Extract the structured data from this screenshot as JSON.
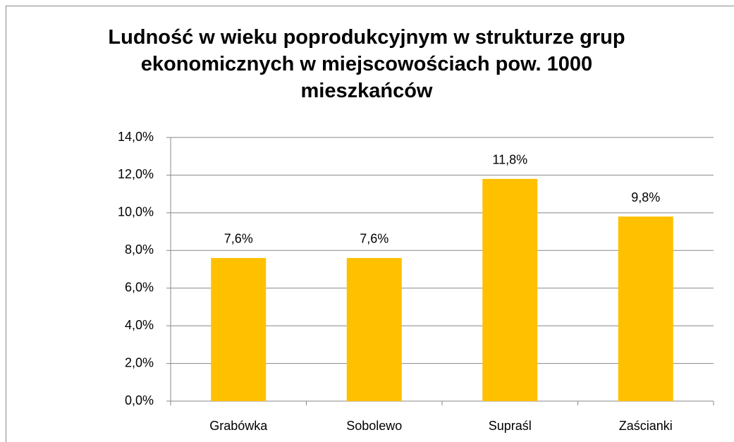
{
  "chart_data": {
    "type": "bar",
    "title": "Ludność  w wieku poprodukcyjnym w strukturze grup ekonomicznych w miejscowościach pow. 1000 mieszkańców",
    "categories": [
      "Grabówka",
      "Sobolewo",
      "Supraśl",
      "Zaścianki"
    ],
    "values": [
      7.6,
      7.6,
      11.8,
      9.8
    ],
    "value_labels": [
      "7,6%",
      "7,6%",
      "11,8%",
      "9,8%"
    ],
    "color": "#ffc000",
    "ylim": [
      0,
      14
    ],
    "yticks": [
      {
        "value": 0,
        "label": "0,0%"
      },
      {
        "value": 2,
        "label": "2,0%"
      },
      {
        "value": 4,
        "label": "4,0%"
      },
      {
        "value": 6,
        "label": "6,0%"
      },
      {
        "value": 8,
        "label": "8,0%"
      },
      {
        "value": 10,
        "label": "10,0%"
      },
      {
        "value": 12,
        "label": "12,0%"
      },
      {
        "value": 14,
        "label": "14,0%"
      }
    ],
    "grid": true
  }
}
